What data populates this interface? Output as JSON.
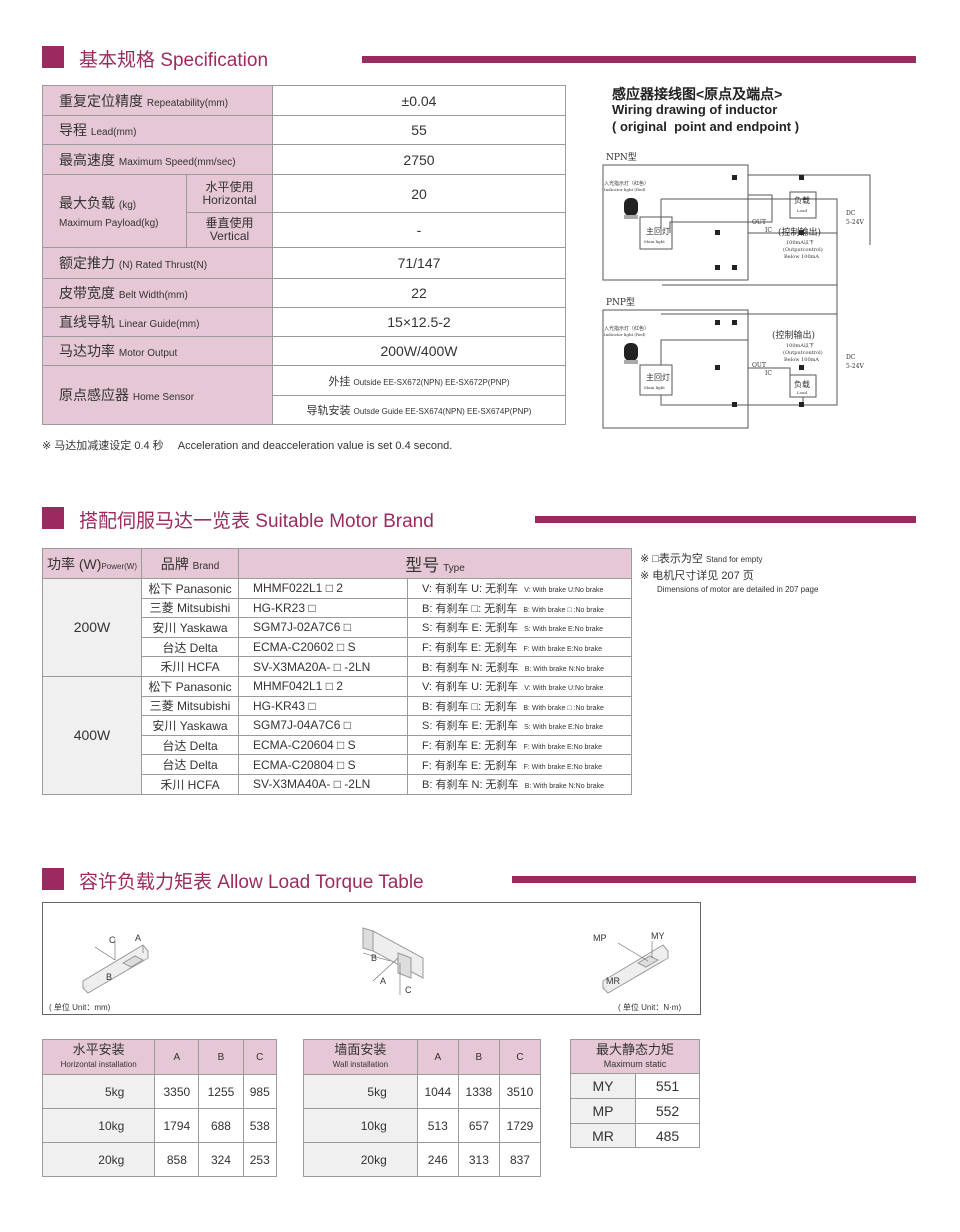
{
  "colors": {
    "accent": "#9b2b5e",
    "header_fill": "#e6c7d5",
    "row_fill": "#f0f0f0"
  },
  "spec": {
    "title": "基本规格 Specification",
    "rows": [
      {
        "cn": "重复定位精度",
        "en": "Repeatability(mm)",
        "value": "±0.04"
      },
      {
        "cn": "导程",
        "en": "Lead(mm)",
        "value": "55"
      },
      {
        "cn": "最高速度",
        "en": "Maximum Speed(mm/sec)",
        "value": "2750"
      }
    ],
    "payload": {
      "cn": "最大负载",
      "unit": "(kg)",
      "en": "Maximum Payload(kg)",
      "horizontal": {
        "cn": "水平使用",
        "en": "Horizontal",
        "value": "20"
      },
      "vertical": {
        "cn": "垂直使用",
        "en": "Vertical",
        "value": "-"
      }
    },
    "rows2": [
      {
        "cn": "额定推力",
        "en": "(N) Rated Thrust(N)",
        "value": "71/147"
      },
      {
        "cn": "皮带宽度",
        "en": "Belt Width(mm)",
        "value": "22"
      },
      {
        "cn": "直线导轨",
        "en": "Linear Guide(mm)",
        "value": "15×12.5-2"
      },
      {
        "cn": "马达功率",
        "en": "Motor Output",
        "value": "200W/400W"
      }
    ],
    "sensor": {
      "cn": "原点感应器",
      "en": "Home Sensor",
      "outside_cn": "外挂",
      "outside_en": "Outside EE-SX672(NPN) EE-SX672P(PNP)",
      "guide_cn": "导轨安装",
      "guide_en": "Outsde Guide EE-SX674(NPN) EE-SX674P(PNP)"
    },
    "note": "※ 马达加减速设定 0.4 秒　 Acceleration and deacceleration value is set 0.4 second."
  },
  "wiring": {
    "title_cn": "感应器接线图<原点及端点>",
    "title_en1": "Wiring drawing of inductor",
    "title_en2": "( original  point and endpoint )",
    "npn": "NPN型",
    "pnp": "PNP型",
    "indicator_cn": "入光指示灯（红色）",
    "indicator_en": "Indicator light (Red)",
    "main_cn": "主回灯",
    "main_en": "Main light",
    "load_cn": "负载",
    "load_en": "Load",
    "out": "OUT",
    "ic": "IC",
    "control_cn": "(控制输出)",
    "below_cn": "100mA以下",
    "control_en": "(Outputcontrol)",
    "below_en": "Below 100mA",
    "dc": "DC",
    "volt": "5-24V"
  },
  "motor": {
    "title": "搭配伺服马达一览表 Suitable Motor Brand",
    "headers": {
      "power_cn": "功率 (W)",
      "power_en": "Power(W)",
      "brand_cn": "品牌",
      "brand_en": "Brand",
      "type_cn": "型号",
      "type_en": "Type"
    },
    "groups": [
      {
        "power": "200W",
        "rows": [
          {
            "brand": "松下 Panasonic",
            "model": "MHMF022L1 □ 2",
            "brake_cn": "V: 有刹车 U:  无刹车",
            "brake_en": "V:  With brake U:No brake"
          },
          {
            "brand": "三菱 Mitsubishi",
            "model": "HG-KR23 □",
            "brake_cn": "B: 有刹车 □:  无刹车",
            "brake_en": "B:  With brake □ :No brake"
          },
          {
            "brand": "安川 Yaskawa",
            "model": "SGM7J-02A7C6 □",
            "brake_cn": "S: 有刹车 E:  无刹车",
            "brake_en": "S:  With brake E:No brake"
          },
          {
            "brand": "台达 Delta",
            "model": "ECMA-C20602 □ S",
            "brake_cn": "F: 有刹车 E:  无刹车",
            "brake_en": "F:  With brake E:No brake"
          },
          {
            "brand": "禾川 HCFA",
            "model": "SV-X3MA20A- □ -2LN",
            "brake_cn": "B: 有刹车 N:  无刹车",
            "brake_en": "B:  With brake N:No brake"
          }
        ]
      },
      {
        "power": "400W",
        "rows": [
          {
            "brand": "松下 Panasonic",
            "model": "MHMF042L1 □ 2",
            "brake_cn": "V: 有刹车 U:  无刹车",
            "brake_en": "V:  With brake U:No brake"
          },
          {
            "brand": "三菱 Mitsubishi",
            "model": "HG-KR43 □",
            "brake_cn": "B: 有刹车 □:  无刹车",
            "brake_en": "B:  With brake □ :No brake"
          },
          {
            "brand": "安川 Yaskawa",
            "model": "SGM7J-04A7C6 □",
            "brake_cn": "S: 有刹车 E:  无刹车",
            "brake_en": "S:  With brake E:No brake"
          },
          {
            "brand": "台达 Delta",
            "model": "ECMA-C20604 □ S",
            "brake_cn": "F: 有刹车 E:  无刹车",
            "brake_en": "F:  With brake E:No brake"
          },
          {
            "brand": "台达 Delta",
            "model": "ECMA-C20804 □ S",
            "brake_cn": "F: 有刹车 E:  无刹车",
            "brake_en": "F:  With brake E:No brake"
          },
          {
            "brand": "禾川 HCFA",
            "model": "SV-X3MA40A- □ -2LN",
            "brake_cn": "B: 有刹车 N:  无刹车",
            "brake_en": "B:  With brake N:No brake"
          }
        ]
      }
    ],
    "notes": {
      "n1_cn": "※ □表示为空",
      "n1_en": "Stand for empty",
      "n2_cn": "※ 电机尺寸详见 207 页",
      "n2_en": "Dimensions of motor are detailed in 207 page"
    }
  },
  "torque": {
    "title": "容许负载力矩表 Allow Load Torque Table",
    "labels": {
      "a": "A",
      "b": "B",
      "c": "C",
      "mp": "MP",
      "my": "MY",
      "mr": "MR"
    },
    "unit_mm": "( 单位 Unit：mm)",
    "unit_nm": "( 单位 Unit：N·m)",
    "horizontal": {
      "cn": "水平安装",
      "en": "Horizontal installation",
      "cols": [
        "A",
        "B",
        "C"
      ],
      "rows": [
        {
          "load": "5kg",
          "v": [
            "3350",
            "1255",
            "985"
          ]
        },
        {
          "load": "10kg",
          "v": [
            "1794",
            "688",
            "538"
          ]
        },
        {
          "load": "20kg",
          "v": [
            "858",
            "324",
            "253"
          ]
        }
      ]
    },
    "wall": {
      "cn": "墙面安装",
      "en": "Wall installation",
      "cols": [
        "A",
        "B",
        "C"
      ],
      "rows": [
        {
          "load": "5kg",
          "v": [
            "1044",
            "1338",
            "3510"
          ]
        },
        {
          "load": "10kg",
          "v": [
            "513",
            "657",
            "1729"
          ]
        },
        {
          "load": "20kg",
          "v": [
            "246",
            "313",
            "837"
          ]
        }
      ]
    },
    "static": {
      "cn": "最大静态力矩",
      "en": "Maximum static",
      "rows": [
        {
          "k": "MY",
          "v": "551"
        },
        {
          "k": "MP",
          "v": "552"
        },
        {
          "k": "MR",
          "v": "485"
        }
      ]
    }
  }
}
